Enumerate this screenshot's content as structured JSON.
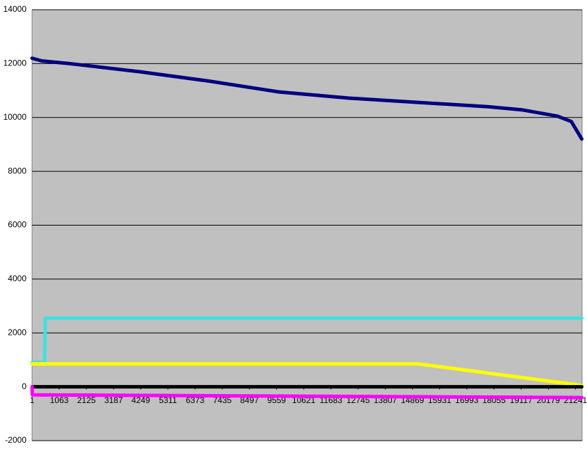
{
  "chart_data": {
    "type": "line",
    "xlim": [
      1,
      21500
    ],
    "xticks": [
      1,
      1063,
      2125,
      3187,
      4249,
      5311,
      6373,
      7435,
      8497,
      9559,
      10621,
      11683,
      12745,
      13807,
      14869,
      15931,
      16993,
      18055,
      19117,
      20179,
      21241
    ],
    "ylim": [
      -2000,
      14000
    ],
    "yticks": [
      -2000,
      0,
      2000,
      4000,
      6000,
      8000,
      10000,
      12000,
      14000
    ],
    "grid": true,
    "series": [
      {
        "color": "#000080",
        "x": [
          1,
          382,
          1471,
          4195,
          6918,
          9640,
          12363,
          15086,
          17809,
          19170,
          20532,
          21077,
          21486
        ],
        "values": [
          12200,
          12100,
          12000,
          11700,
          11350,
          10950,
          10720,
          10560,
          10400,
          10280,
          10050,
          9850,
          9200
        ]
      },
      {
        "color": "#40e0e0",
        "x": [
          1,
          490,
          520,
          21486
        ],
        "values": [
          900,
          900,
          2550,
          2550
        ]
      },
      {
        "color": "#ffff00",
        "x": [
          1,
          15086,
          21486
        ],
        "values": [
          850,
          850,
          50
        ]
      },
      {
        "color": "#000000",
        "x": [
          1,
          21486
        ],
        "values": [
          0,
          0
        ]
      },
      {
        "color": "#ff00ff",
        "x": [
          1,
          10,
          21486
        ],
        "values": [
          0,
          -300,
          -400
        ]
      }
    ]
  }
}
